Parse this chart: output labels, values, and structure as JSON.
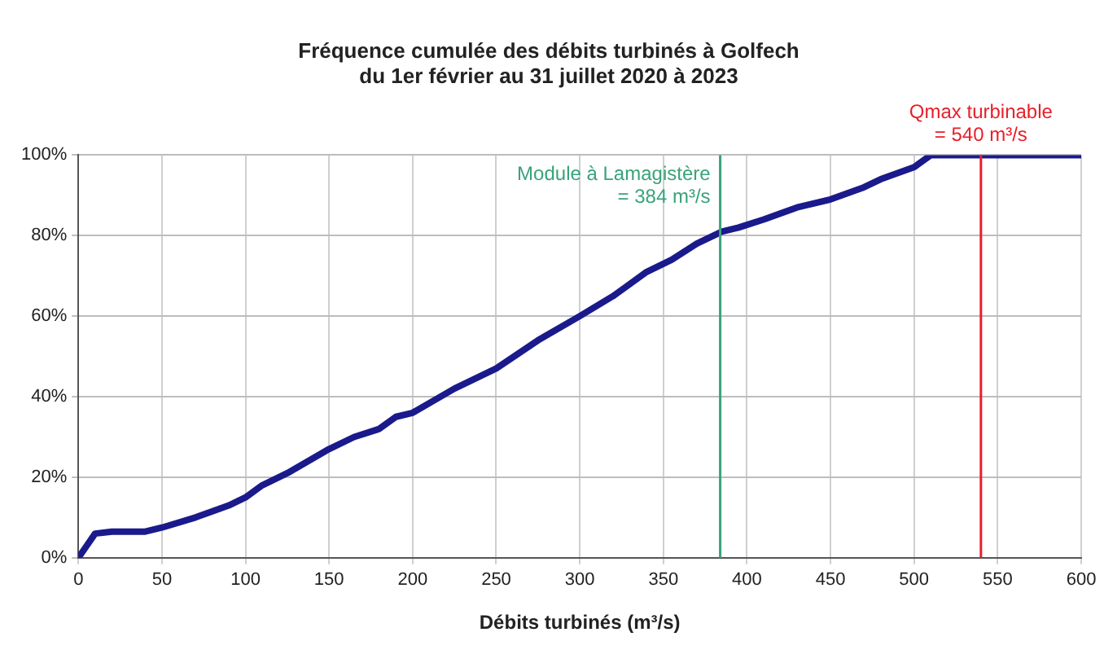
{
  "chart_data": {
    "type": "line",
    "title": "Fréquence cumulée des débits turbinés à Golfech\ndu 1er février au 31 juillet 2020 à 2023",
    "xlabel": "Débits turbinés (m³/s)",
    "series": [
      {
        "color": "#1a1a8c",
        "x": [
          0,
          5,
          10,
          20,
          40,
          50,
          70,
          90,
          100,
          110,
          125,
          150,
          165,
          180,
          190,
          200,
          225,
          250,
          275,
          300,
          320,
          340,
          355,
          370,
          385,
          395,
          410,
          430,
          450,
          470,
          480,
          500,
          510,
          600
        ],
        "values": [
          0,
          3,
          6,
          6.5,
          6.5,
          7.5,
          10,
          13,
          15,
          18,
          21,
          27,
          30,
          32,
          35,
          36,
          42,
          47,
          54,
          60,
          65,
          71,
          74,
          78,
          81,
          82,
          84,
          87,
          89,
          92,
          94,
          97,
          100,
          100
        ]
      }
    ],
    "xlim": [
      0,
      600
    ],
    "xticks": [
      0,
      50,
      100,
      150,
      200,
      250,
      300,
      350,
      400,
      450,
      500,
      550,
      600
    ],
    "ylim": [
      0,
      100
    ],
    "yticks": [
      {
        "value": 0,
        "label": "0%"
      },
      {
        "value": 20,
        "label": "20%"
      },
      {
        "value": 40,
        "label": "40%"
      },
      {
        "value": 60,
        "label": "60%"
      },
      {
        "value": 80,
        "label": "80%"
      },
      {
        "value": 100,
        "label": "100%"
      }
    ],
    "ref_lines": [
      {
        "axis": "x",
        "value": 384,
        "label": "Module à Lamagistère\n= 384 m³/s",
        "color": "#3aa37a"
      },
      {
        "axis": "x",
        "value": 540,
        "label": "Qmax turbinable\n= 540 m³/s",
        "color": "#e8202a"
      }
    ],
    "grid": true,
    "legend": false,
    "marker": "none",
    "line_style": "solid"
  }
}
